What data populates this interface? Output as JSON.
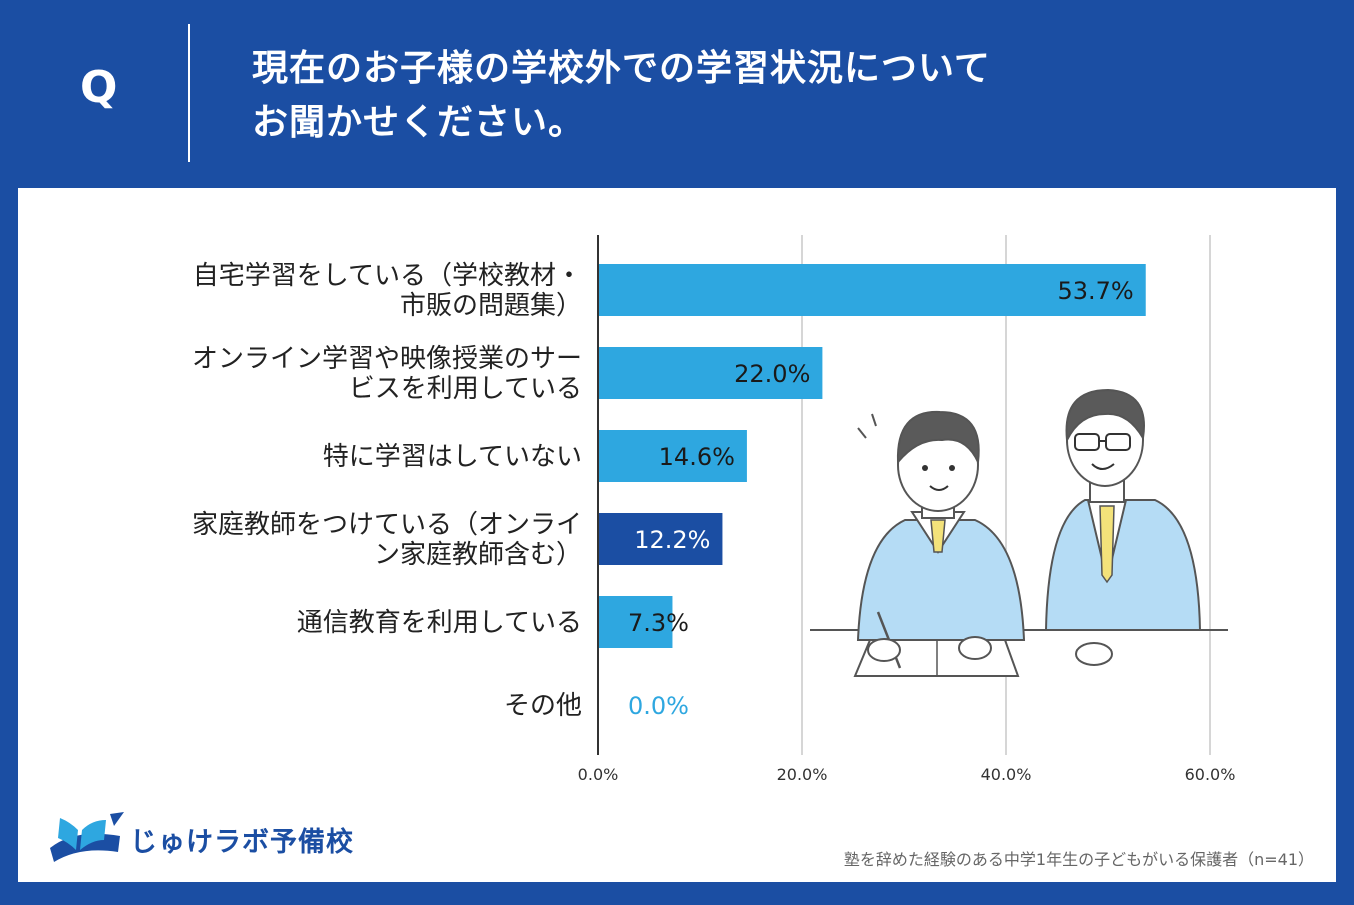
{
  "header": {
    "q_mark": "Q",
    "question_lines": [
      "現在のお子様の学校外での学習状況について",
      "お聞かせください。"
    ]
  },
  "chart_data": {
    "type": "bar",
    "orientation": "horizontal",
    "categories": [
      [
        "自宅学習をしている（学校教材・",
        "市販の問題集）"
      ],
      [
        "オンライン学習や映像授業のサー",
        "ビスを利用している"
      ],
      [
        "特に学習はしていない"
      ],
      [
        "家庭教師をつけている（オンライ",
        "ン家庭教師含む）"
      ],
      [
        "通信教育を利用している"
      ],
      [
        "その他"
      ]
    ],
    "values": [
      53.7,
      22.0,
      14.6,
      12.2,
      7.3,
      0.0
    ],
    "value_labels": [
      "53.7%",
      "22.0%",
      "14.6%",
      "12.2%",
      "7.3%",
      "0.0%"
    ],
    "highlight_index": 3,
    "xlim": [
      0,
      60
    ],
    "x_ticks": [
      "0.0%",
      "20.0%",
      "40.0%",
      "60.0%"
    ],
    "grid": true,
    "colors": {
      "bar": "#2ea7e0",
      "highlight": "#1b4ea3",
      "grid": "#c8c8c8",
      "axis": "#333333"
    }
  },
  "footer": {
    "logo_text": "じゅけラボ予備校",
    "note": "塾を辞めた経験のある中学1年生の子どもがいる保護者（n=41）"
  },
  "colors": {
    "brand": "#1b4ea3",
    "illustration_shirt": "#b5dcf5",
    "tie": "#f3e27a",
    "hair": "#5a5a5a"
  }
}
